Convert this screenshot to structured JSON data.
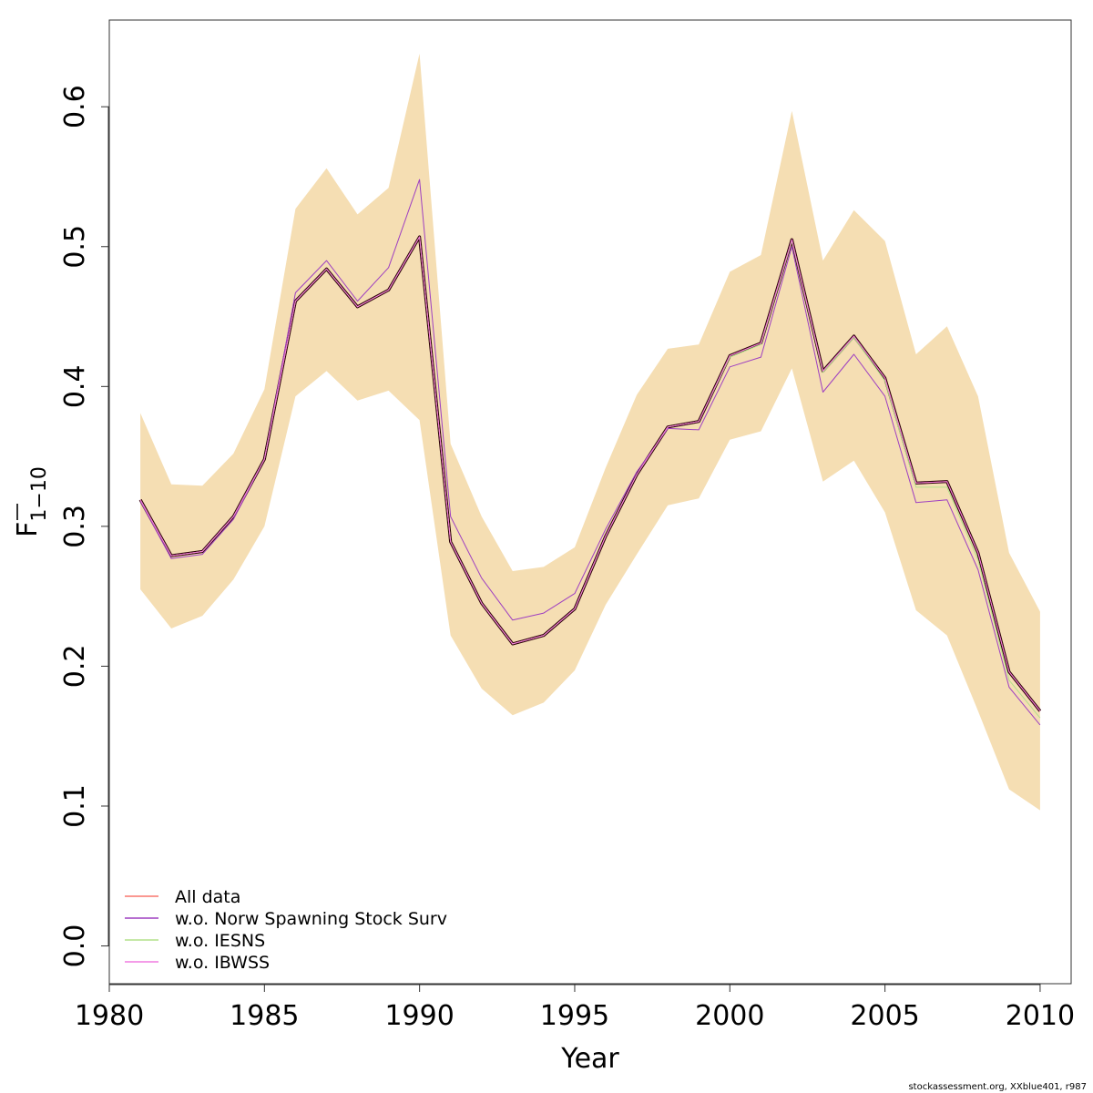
{
  "chart_data": {
    "type": "line",
    "xlabel": "Year",
    "ylabel": {
      "main": "F",
      "sub": "1−10"
    },
    "xlim": [
      1980,
      2011
    ],
    "ylim": [
      -0.027,
      0.662
    ],
    "xticks": [
      1980,
      1985,
      1990,
      1995,
      2000,
      2005,
      2010
    ],
    "xtick_labels": [
      "1980",
      "1985",
      "1990",
      "1995",
      "2000",
      "2005",
      "2010"
    ],
    "yticks": [
      0.0,
      0.1,
      0.2,
      0.3,
      0.4,
      0.5,
      0.6
    ],
    "ytick_labels": [
      "0.0",
      "0.1",
      "0.2",
      "0.3",
      "0.4",
      "0.5",
      "0.6"
    ],
    "grid": false,
    "legend_position": "bottom-left",
    "band_color": "#F5DEB3",
    "x": [
      1981,
      1982,
      1983,
      1984,
      1985,
      1986,
      1987,
      1988,
      1989,
      1990,
      1991,
      1992,
      1993,
      1994,
      1995,
      1996,
      1997,
      1998,
      1999,
      2000,
      2001,
      2002,
      2003,
      2004,
      2005,
      2006,
      2007,
      2008,
      2009,
      2010
    ],
    "band": {
      "upper": [
        0.381,
        0.33,
        0.329,
        0.352,
        0.398,
        0.527,
        0.556,
        0.523,
        0.542,
        0.638,
        0.359,
        0.307,
        0.268,
        0.271,
        0.285,
        0.342,
        0.394,
        0.427,
        0.43,
        0.482,
        0.494,
        0.597,
        0.49,
        0.526,
        0.504,
        0.423,
        0.443,
        0.393,
        0.281,
        0.239
      ],
      "lower": [
        0.255,
        0.227,
        0.236,
        0.262,
        0.3,
        0.393,
        0.411,
        0.39,
        0.397,
        0.376,
        0.222,
        0.184,
        0.165,
        0.174,
        0.197,
        0.244,
        0.28,
        0.315,
        0.32,
        0.362,
        0.368,
        0.413,
        0.332,
        0.347,
        0.31,
        0.24,
        0.222,
        0.168,
        0.112,
        0.097
      ]
    },
    "main_line": {
      "color": "#2a0008",
      "values": [
        0.319,
        0.279,
        0.282,
        0.307,
        0.348,
        0.461,
        0.484,
        0.457,
        0.469,
        0.507,
        0.289,
        0.245,
        0.216,
        0.222,
        0.241,
        0.293,
        0.337,
        0.371,
        0.375,
        0.422,
        0.431,
        0.505,
        0.411,
        0.436,
        0.406,
        0.331,
        0.332,
        0.281,
        0.196,
        0.168
      ]
    },
    "series": [
      {
        "name": "All data",
        "color": "#F8766D",
        "values": [
          0.319,
          0.279,
          0.282,
          0.307,
          0.348,
          0.461,
          0.484,
          0.457,
          0.469,
          0.507,
          0.289,
          0.245,
          0.216,
          0.222,
          0.241,
          0.293,
          0.337,
          0.371,
          0.375,
          0.422,
          0.431,
          0.505,
          0.411,
          0.436,
          0.406,
          0.331,
          0.332,
          0.281,
          0.196,
          0.168
        ]
      },
      {
        "name": "w.o. Norw Spawning Stock Surv",
        "color": "#9E3FC1",
        "values": [
          0.318,
          0.277,
          0.28,
          0.305,
          0.348,
          0.467,
          0.49,
          0.461,
          0.485,
          0.548,
          0.307,
          0.263,
          0.233,
          0.238,
          0.252,
          0.298,
          0.339,
          0.37,
          0.369,
          0.414,
          0.421,
          0.5,
          0.396,
          0.423,
          0.393,
          0.317,
          0.319,
          0.269,
          0.185,
          0.158
        ]
      },
      {
        "name": "w.o. IESNS",
        "color": "#B2E08A",
        "values": [
          0.319,
          0.279,
          0.282,
          0.307,
          0.348,
          0.461,
          0.484,
          0.457,
          0.469,
          0.507,
          0.289,
          0.245,
          0.216,
          0.222,
          0.241,
          0.293,
          0.337,
          0.371,
          0.375,
          0.421,
          0.43,
          0.504,
          0.41,
          0.435,
          0.404,
          0.328,
          0.328,
          0.276,
          0.19,
          0.163
        ]
      },
      {
        "name": "w.o. IBWSS",
        "color": "#F07CE0",
        "values": [
          0.319,
          0.279,
          0.282,
          0.307,
          0.348,
          0.461,
          0.484,
          0.457,
          0.469,
          0.507,
          0.289,
          0.245,
          0.216,
          0.222,
          0.241,
          0.293,
          0.337,
          0.371,
          0.375,
          0.422,
          0.431,
          0.505,
          0.411,
          0.436,
          0.406,
          0.331,
          0.332,
          0.281,
          0.196,
          0.168
        ]
      }
    ]
  },
  "footer": {
    "credit": "stockassessment.org, XXblue401, r987"
  }
}
